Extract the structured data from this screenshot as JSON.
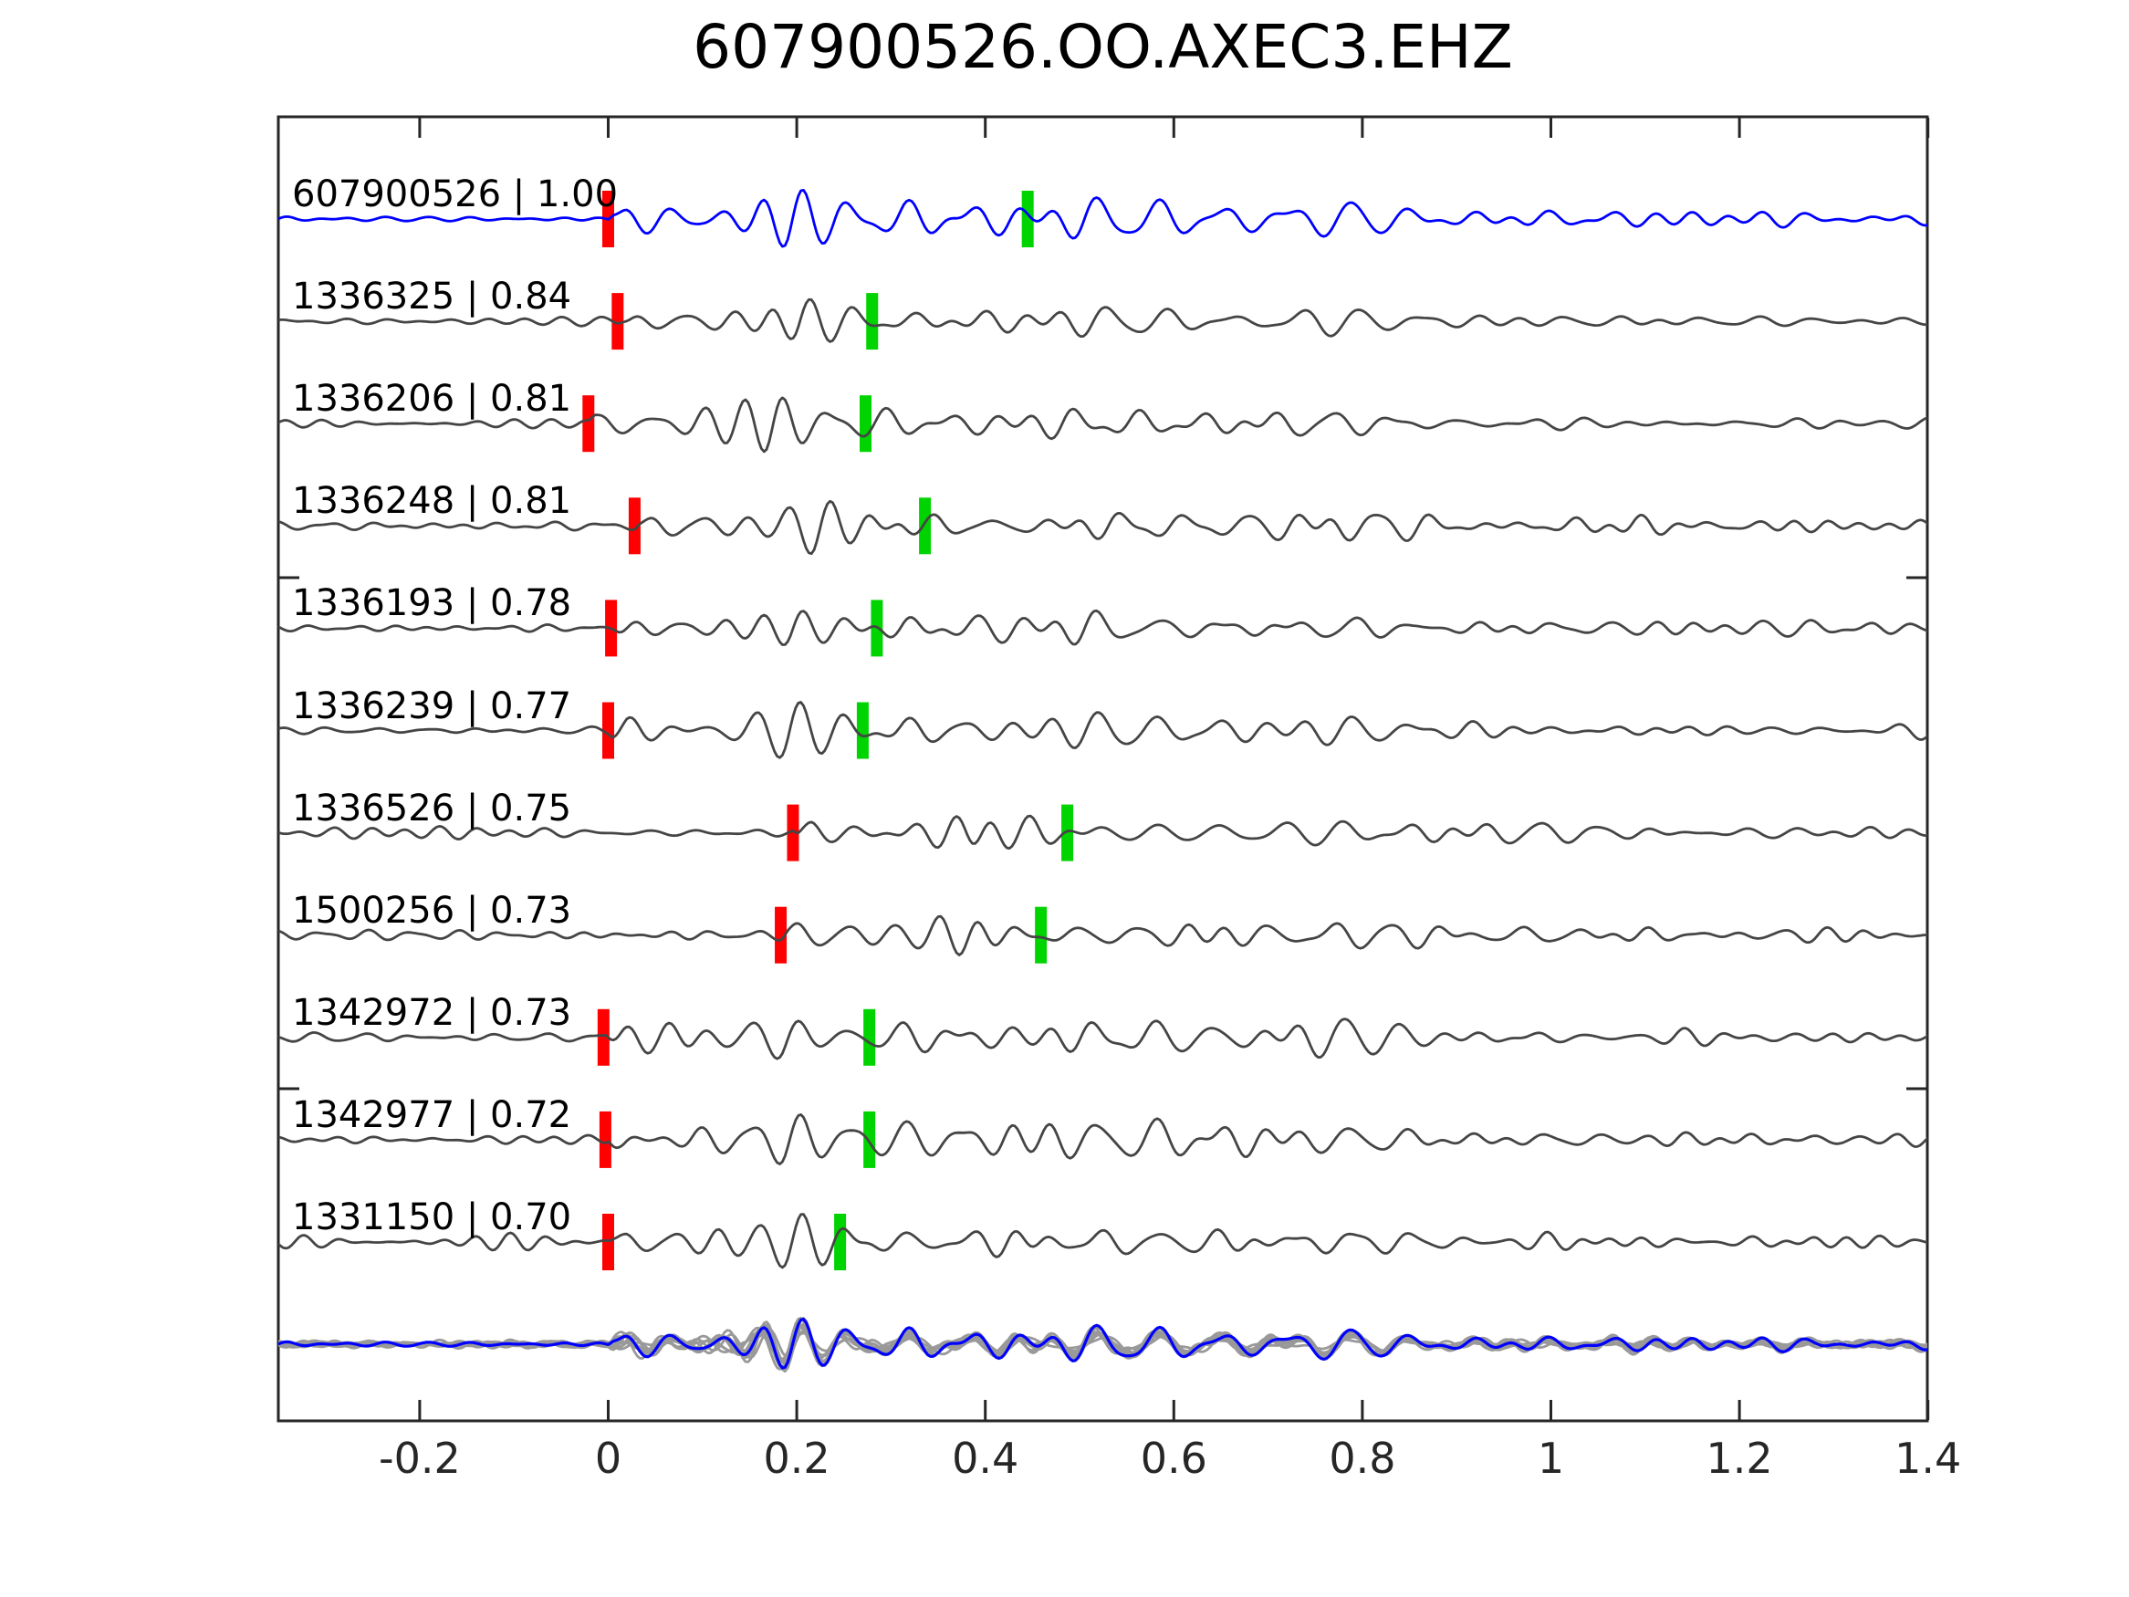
{
  "figure": {
    "title": "607900526.OO.AXEC3.EHZ"
  },
  "colors": {
    "background": "#ffffff",
    "axis": "#262626",
    "text": "#000000",
    "template_blue": "#0000ff",
    "match_gray": "#454545",
    "overlay_gray": "#999999",
    "pick_red": "#ff0000",
    "pick_green": "#00d400"
  },
  "chart_data": {
    "type": "line",
    "title": "607900526.OO.AXEC3.EHZ",
    "xlabel": "",
    "ylabel": "",
    "xlim": [
      -0.35,
      1.4
    ],
    "xticks": [
      -0.2,
      0,
      0.2,
      0.4,
      0.6,
      0.8,
      1,
      1.2,
      1.4
    ],
    "xtick_labels": [
      "-0.2",
      "0",
      "0.2",
      "0.4",
      "0.6",
      "0.8",
      "1",
      "1.2",
      "1.4"
    ],
    "grid": false,
    "legend": "none",
    "description": "Template waveform (blue) and cross-correlation matched detections (dark gray), each annotated with 'event_id | correlation'. Red bar = alignment pick, green bar = secondary pick. Bottom row: all traces aligned on the red pick and superimposed (gray) with the template overlaid (blue).",
    "traces": [
      {
        "id": "607900526",
        "cc": 1.0,
        "label": "607900526 | 1.00",
        "role": "template",
        "red_pick": 0.0,
        "green_pick": 0.445
      },
      {
        "id": "1336325",
        "cc": 0.84,
        "label": "1336325 | 0.84",
        "role": "match",
        "red_pick": 0.01,
        "green_pick": 0.28
      },
      {
        "id": "1336206",
        "cc": 0.81,
        "label": "1336206 | 0.81",
        "role": "match",
        "red_pick": -0.021,
        "green_pick": 0.273
      },
      {
        "id": "1336248",
        "cc": 0.81,
        "label": "1336248 | 0.81",
        "role": "match",
        "red_pick": 0.028,
        "green_pick": 0.336
      },
      {
        "id": "1336193",
        "cc": 0.78,
        "label": "1336193 | 0.78",
        "role": "match",
        "red_pick": 0.003,
        "green_pick": 0.285
      },
      {
        "id": "1336239",
        "cc": 0.77,
        "label": "1336239 | 0.77",
        "role": "match",
        "red_pick": 0.0,
        "green_pick": 0.27
      },
      {
        "id": "1336526",
        "cc": 0.75,
        "label": "1336526 | 0.75",
        "role": "match",
        "red_pick": 0.196,
        "green_pick": 0.487
      },
      {
        "id": "1500256",
        "cc": 0.73,
        "label": "1500256 | 0.73",
        "role": "match",
        "red_pick": 0.183,
        "green_pick": 0.459
      },
      {
        "id": "1342972",
        "cc": 0.73,
        "label": "1342972 | 0.73",
        "role": "match",
        "red_pick": -0.005,
        "green_pick": 0.277
      },
      {
        "id": "1342977",
        "cc": 0.72,
        "label": "1342977 | 0.72",
        "role": "match",
        "red_pick": -0.003,
        "green_pick": 0.277
      },
      {
        "id": "1331150",
        "cc": 0.7,
        "label": "1331150 | 0.70",
        "role": "match",
        "red_pick": 0.0,
        "green_pick": 0.246
      }
    ],
    "overlay_row": {
      "description": "all 11 traces aligned on red pick, superimposed; template highlighted",
      "gray_role": "overlay_gray",
      "highlight_role": "template_blue"
    }
  }
}
